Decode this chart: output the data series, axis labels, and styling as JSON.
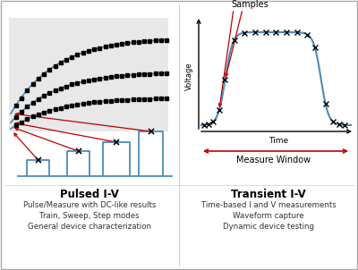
{
  "background_color": "#ffffff",
  "blue_color": "#4b8ab8",
  "red_color": "#c00000",
  "gray_bg": "#e8e8e8",
  "title_left": "Pulsed I-V",
  "title_right": "Transient I-V",
  "desc_left": [
    "Pulse/Measure with DC-like results",
    "Train, Sweep, Step modes",
    "General device characterization"
  ],
  "desc_right": [
    "Time-based I and V measurements",
    "Waveform capture",
    "Dynamic device testing"
  ],
  "label_samples": "Samples",
  "label_voltage": "Voltage",
  "label_time": "Time",
  "label_measure_window": "Measure Window"
}
